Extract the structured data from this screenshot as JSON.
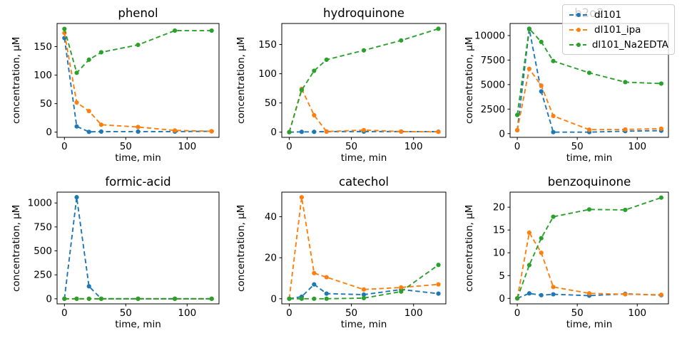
{
  "legend": {
    "entries": [
      {
        "label": "dl101",
        "color": "#1f77b4"
      },
      {
        "label": "dl101_ipa",
        "color": "#ff7f0e"
      },
      {
        "label": "dl101_Na2EDTA",
        "color": "#2ca02c"
      }
    ],
    "position": "upper right",
    "background_opacity": 0.8
  },
  "chart_data": [
    {
      "type": "line",
      "title": "phenol",
      "xlabel": "time, min",
      "ylabel": "concentration, µM",
      "x": [
        0,
        10,
        20,
        30,
        60,
        90,
        120
      ],
      "series": [
        {
          "name": "dl101",
          "color": "#1f77b4",
          "values": [
            165,
            10,
            0.5,
            1,
            1,
            1,
            1.5
          ]
        },
        {
          "name": "dl101_ipa",
          "color": "#ff7f0e",
          "values": [
            174,
            52,
            37,
            13,
            9,
            3,
            1.5
          ]
        },
        {
          "name": "dl101_Na2EDTA",
          "color": "#2ca02c",
          "values": [
            181,
            104,
            127,
            140,
            153,
            178,
            178
          ]
        }
      ],
      "xticks": [
        0,
        50,
        100
      ],
      "yticks": [
        0,
        50,
        100,
        150
      ],
      "xlim": [
        -6,
        126
      ],
      "ylim": [
        -9.1,
        190.5
      ],
      "grid": false,
      "line_style": "dashed",
      "marker": "dot"
    },
    {
      "type": "line",
      "title": "hydroquinone",
      "xlabel": "time, min",
      "ylabel": "concentration, µM",
      "x": [
        0,
        10,
        20,
        30,
        60,
        90,
        120
      ],
      "series": [
        {
          "name": "dl101",
          "color": "#1f77b4",
          "values": [
            0,
            0.5,
            0.5,
            1,
            1,
            1,
            0.8
          ]
        },
        {
          "name": "dl101_ipa",
          "color": "#ff7f0e",
          "values": [
            0,
            74,
            29,
            1,
            3.5,
            1,
            0.5
          ]
        },
        {
          "name": "dl101_Na2EDTA",
          "color": "#2ca02c",
          "values": [
            0,
            72,
            105,
            124,
            140,
            157,
            177
          ]
        }
      ],
      "xticks": [
        0,
        50,
        100
      ],
      "yticks": [
        0,
        50,
        100,
        150
      ],
      "xlim": [
        -6,
        126
      ],
      "ylim": [
        -8.9,
        186
      ],
      "grid": false,
      "line_style": "dashed",
      "marker": "dot"
    },
    {
      "type": "line",
      "title": "h2o2",
      "xlabel": "time, min",
      "ylabel": "concentration, µM",
      "x": [
        0,
        10,
        20,
        30,
        60,
        90,
        120
      ],
      "series": [
        {
          "name": "dl101",
          "color": "#1f77b4",
          "values": [
            350,
            10650,
            4300,
            150,
            150,
            250,
            300
          ]
        },
        {
          "name": "dl101_ipa",
          "color": "#ff7f0e",
          "values": [
            350,
            6600,
            4900,
            1800,
            400,
            420,
            500
          ]
        },
        {
          "name": "dl101_Na2EDTA",
          "color": "#2ca02c",
          "values": [
            1900,
            10700,
            9350,
            7400,
            6200,
            5250,
            5100
          ]
        }
      ],
      "xticks": [
        0,
        50,
        100
      ],
      "yticks": [
        0,
        2500,
        5000,
        7500,
        10000
      ],
      "xlim": [
        -6,
        126
      ],
      "ylim": [
        -380,
        11230
      ],
      "grid": false,
      "line_style": "dashed",
      "marker": "dot"
    },
    {
      "type": "line",
      "title": "formic-acid",
      "xlabel": "time, min",
      "ylabel": "concentration, µM",
      "x": [
        0,
        10,
        20,
        30,
        60,
        90,
        120
      ],
      "series": [
        {
          "name": "dl101",
          "color": "#1f77b4",
          "values": [
            0,
            1060,
            130,
            0,
            0,
            0,
            0
          ]
        },
        {
          "name": "dl101_ipa",
          "color": "#ff7f0e",
          "values": [
            0,
            0,
            0,
            0,
            0,
            0,
            0
          ]
        },
        {
          "name": "dl101_Na2EDTA",
          "color": "#2ca02c",
          "values": [
            0,
            0,
            0,
            0,
            0,
            0,
            0
          ]
        }
      ],
      "xticks": [
        0,
        50,
        100
      ],
      "yticks": [
        0,
        250,
        500,
        750,
        1000
      ],
      "xlim": [
        -6,
        126
      ],
      "ylim": [
        -53,
        1113
      ],
      "grid": false,
      "line_style": "dashed",
      "marker": "dot"
    },
    {
      "type": "line",
      "title": "catechol",
      "xlabel": "time, min",
      "ylabel": "concentration, µM",
      "x": [
        0,
        10,
        20,
        30,
        60,
        90,
        120
      ],
      "series": [
        {
          "name": "dl101",
          "color": "#1f77b4",
          "values": [
            0,
            1,
            7,
            2.5,
            2,
            4.5,
            2.5
          ]
        },
        {
          "name": "dl101_ipa",
          "color": "#ff7f0e",
          "values": [
            0,
            49.5,
            12.5,
            10.5,
            4.5,
            5.5,
            7
          ]
        },
        {
          "name": "dl101_Na2EDTA",
          "color": "#2ca02c",
          "values": [
            0,
            0,
            0,
            0,
            0.3,
            3.5,
            16.5
          ]
        }
      ],
      "xticks": [
        0,
        50,
        100
      ],
      "yticks": [
        0,
        20,
        40
      ],
      "xlim": [
        -6,
        126
      ],
      "ylim": [
        -2.5,
        52
      ],
      "grid": false,
      "line_style": "dashed",
      "marker": "dot"
    },
    {
      "type": "line",
      "title": "benzoquinone",
      "xlabel": "time, min",
      "ylabel": "concentration, µM",
      "x": [
        0,
        10,
        20,
        30,
        60,
        90,
        120
      ],
      "series": [
        {
          "name": "dl101",
          "color": "#1f77b4",
          "values": [
            0,
            1.1,
            0.7,
            0.9,
            0.6,
            1.0,
            0.7
          ]
        },
        {
          "name": "dl101_ipa",
          "color": "#ff7f0e",
          "values": [
            0,
            14.4,
            10,
            2.5,
            1.1,
            0.9,
            0.8
          ]
        },
        {
          "name": "dl101_Na2EDTA",
          "color": "#2ca02c",
          "values": [
            0,
            7.3,
            13.2,
            17.9,
            19.5,
            19.4,
            22.1
          ]
        }
      ],
      "xticks": [
        0,
        50,
        100
      ],
      "yticks": [
        0,
        5,
        10,
        15,
        20
      ],
      "xlim": [
        -6,
        126
      ],
      "ylim": [
        -1.2,
        23.3
      ],
      "grid": false,
      "line_style": "dashed",
      "marker": "dot"
    }
  ]
}
